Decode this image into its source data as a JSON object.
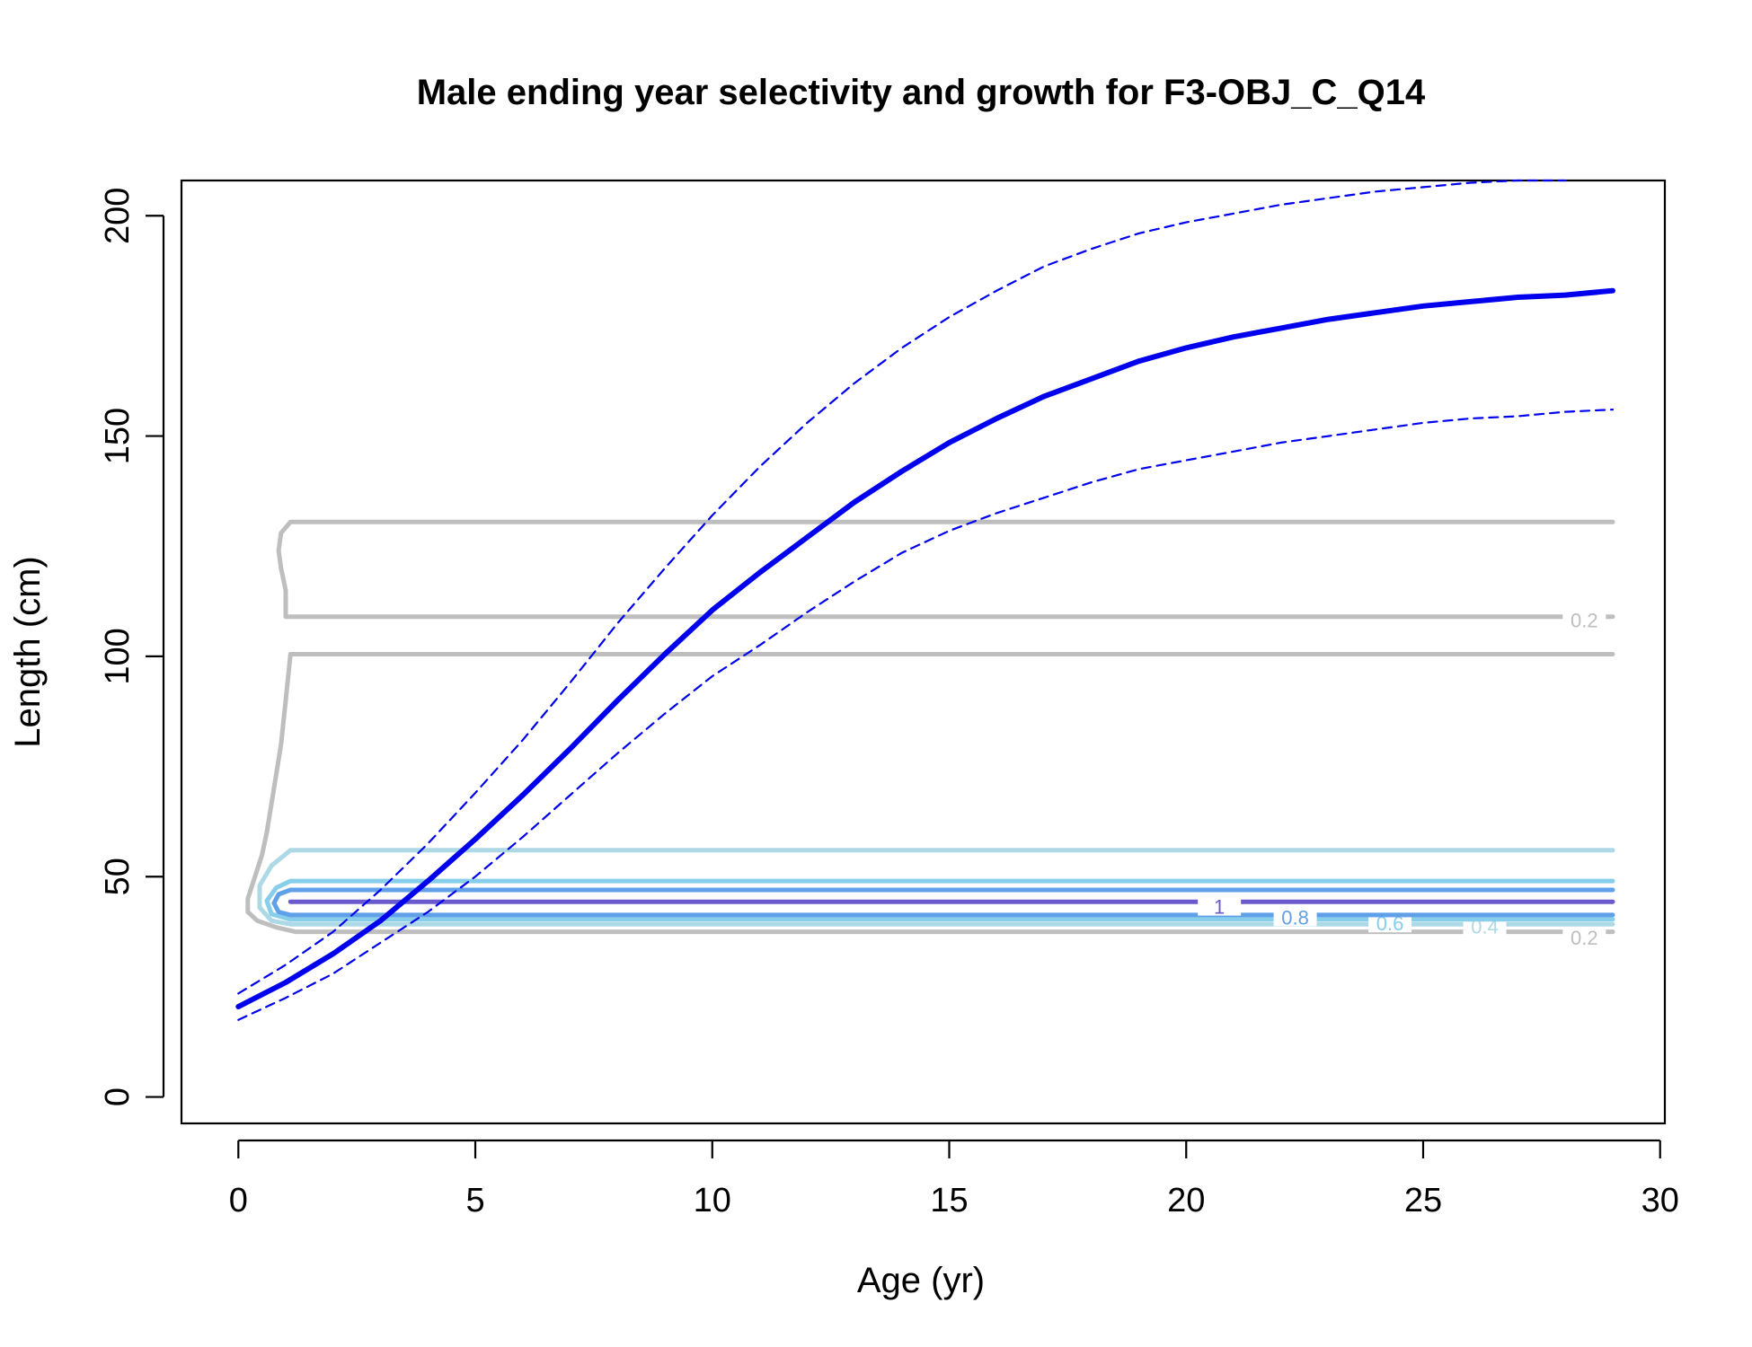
{
  "chart_data": {
    "type": "line",
    "title": "Male ending year selectivity and growth for F3-OBJ_C_Q14",
    "xlabel": "Age (yr)",
    "ylabel": "Length (cm)",
    "xlim": [
      -1.2,
      30.1
    ],
    "ylim": [
      -6,
      208
    ],
    "x_ticks": [
      0,
      5,
      10,
      15,
      20,
      25,
      30
    ],
    "y_ticks": [
      0,
      50,
      100,
      150,
      200
    ],
    "grid": false,
    "series": [
      {
        "role": "growth-mean",
        "color": "#0000ee",
        "style": "solid",
        "x": [
          0,
          1,
          2,
          3,
          4,
          5,
          6,
          7,
          8,
          9,
          10,
          11,
          12,
          13,
          14,
          15,
          16,
          17,
          18,
          19,
          20,
          21,
          22,
          23,
          24,
          25,
          26,
          27,
          28,
          29
        ],
        "y": [
          20.5,
          26,
          32.5,
          40,
          49,
          58.5,
          68.5,
          79,
          90,
          100.5,
          110.5,
          119,
          127,
          135,
          142,
          148.5,
          154,
          159,
          163,
          167,
          170,
          172.5,
          174.5,
          176.5,
          178,
          179.5,
          180.5,
          181.5,
          182,
          183
        ]
      },
      {
        "role": "growth-upper",
        "color": "#0000ee",
        "style": "dashed",
        "x": [
          0,
          1,
          2,
          3,
          4,
          5,
          6,
          7,
          8,
          9,
          10,
          11,
          12,
          13,
          14,
          15,
          16,
          17,
          18,
          19,
          20,
          21,
          22,
          23,
          24,
          25,
          26,
          27,
          28
        ],
        "y": [
          23.5,
          30,
          37.5,
          47,
          57.5,
          69,
          81,
          94,
          107.5,
          120,
          132,
          143,
          153,
          162,
          170,
          177,
          183,
          188.5,
          192.5,
          196,
          198.5,
          200.5,
          202.5,
          204,
          205.5,
          206.5,
          207.5,
          208,
          208
        ]
      },
      {
        "role": "growth-lower",
        "color": "#0000ee",
        "style": "dashed",
        "x": [
          0,
          1,
          2,
          3,
          4,
          5,
          6,
          7,
          8,
          9,
          10,
          11,
          12,
          13,
          14,
          15,
          16,
          17,
          18,
          19,
          20,
          21,
          22,
          23,
          24,
          25,
          26,
          27,
          28,
          29
        ],
        "y": [
          17.5,
          22.5,
          28,
          35,
          42,
          50,
          59,
          68.5,
          78,
          87,
          95.5,
          102.5,
          110,
          117,
          123.5,
          128.5,
          132.5,
          136,
          139.5,
          142.5,
          144.5,
          146.5,
          148.5,
          150,
          151.5,
          153,
          154,
          154.5,
          155.5,
          156
        ]
      }
    ],
    "contours": [
      {
        "level": "0.2",
        "color": "#bebebe",
        "lines": [
          [
            [
              29,
              130.5
            ],
            [
              1.1,
              130.5
            ],
            [
              0.9,
              128
            ],
            [
              0.85,
              124
            ],
            [
              0.9,
              120
            ],
            [
              1,
              115
            ],
            [
              1,
              109
            ],
            [
              29,
              109
            ]
          ],
          [
            [
              29,
              100.5
            ],
            [
              1.1,
              100.5
            ],
            [
              1,
              90
            ],
            [
              0.9,
              80
            ],
            [
              0.75,
              70
            ],
            [
              0.6,
              60
            ],
            [
              0.5,
              55
            ],
            [
              0.35,
              50
            ],
            [
              0.2,
              45
            ],
            [
              0.2,
              42
            ],
            [
              0.4,
              40
            ],
            [
              0.8,
              38.5
            ],
            [
              1.2,
              37.5
            ],
            [
              29,
              37.5
            ]
          ]
        ],
        "label": "0.2",
        "label_x": [
          28.4,
          28.4
        ],
        "label_y": [
          108,
          36
        ]
      },
      {
        "level": "0.4",
        "color": "#add8e6",
        "lines": [
          [
            [
              29,
              56
            ],
            [
              1.1,
              56
            ],
            [
              0.7,
              52.5
            ],
            [
              0.45,
              48
            ],
            [
              0.45,
              43
            ],
            [
              0.7,
              40
            ],
            [
              1.1,
              39.2
            ],
            [
              29,
              39.2
            ]
          ]
        ],
        "label": "0.4",
        "label_x": [
          26.3
        ],
        "label_y": [
          38.5
        ]
      },
      {
        "level": "0.6",
        "color": "#87ceeb",
        "lines": [
          [
            [
              29,
              49
            ],
            [
              1.1,
              49
            ],
            [
              0.8,
              47.5
            ],
            [
              0.6,
              44.5
            ],
            [
              0.7,
              41.5
            ],
            [
              1.1,
              40.3
            ],
            [
              29,
              40.3
            ]
          ]
        ],
        "label": "0.6",
        "label_x": [
          24.3
        ],
        "label_y": [
          39.2
        ]
      },
      {
        "level": "0.8",
        "color": "#5fa0e8",
        "lines": [
          [
            [
              29,
              47
            ],
            [
              1.1,
              47
            ],
            [
              0.85,
              46
            ],
            [
              0.75,
              44
            ],
            [
              0.85,
              42
            ],
            [
              1.1,
              41.3
            ],
            [
              29,
              41.3
            ]
          ]
        ],
        "label": "0.8",
        "label_x": [
          22.3
        ],
        "label_y": [
          40.6
        ]
      },
      {
        "level": "1",
        "color": "#6a5acd",
        "lines": [
          [
            [
              1.1,
              44.3
            ],
            [
              29,
              44.3
            ]
          ]
        ],
        "label": "1",
        "label_x": [
          20.7
        ],
        "label_y": [
          43
        ]
      }
    ]
  }
}
